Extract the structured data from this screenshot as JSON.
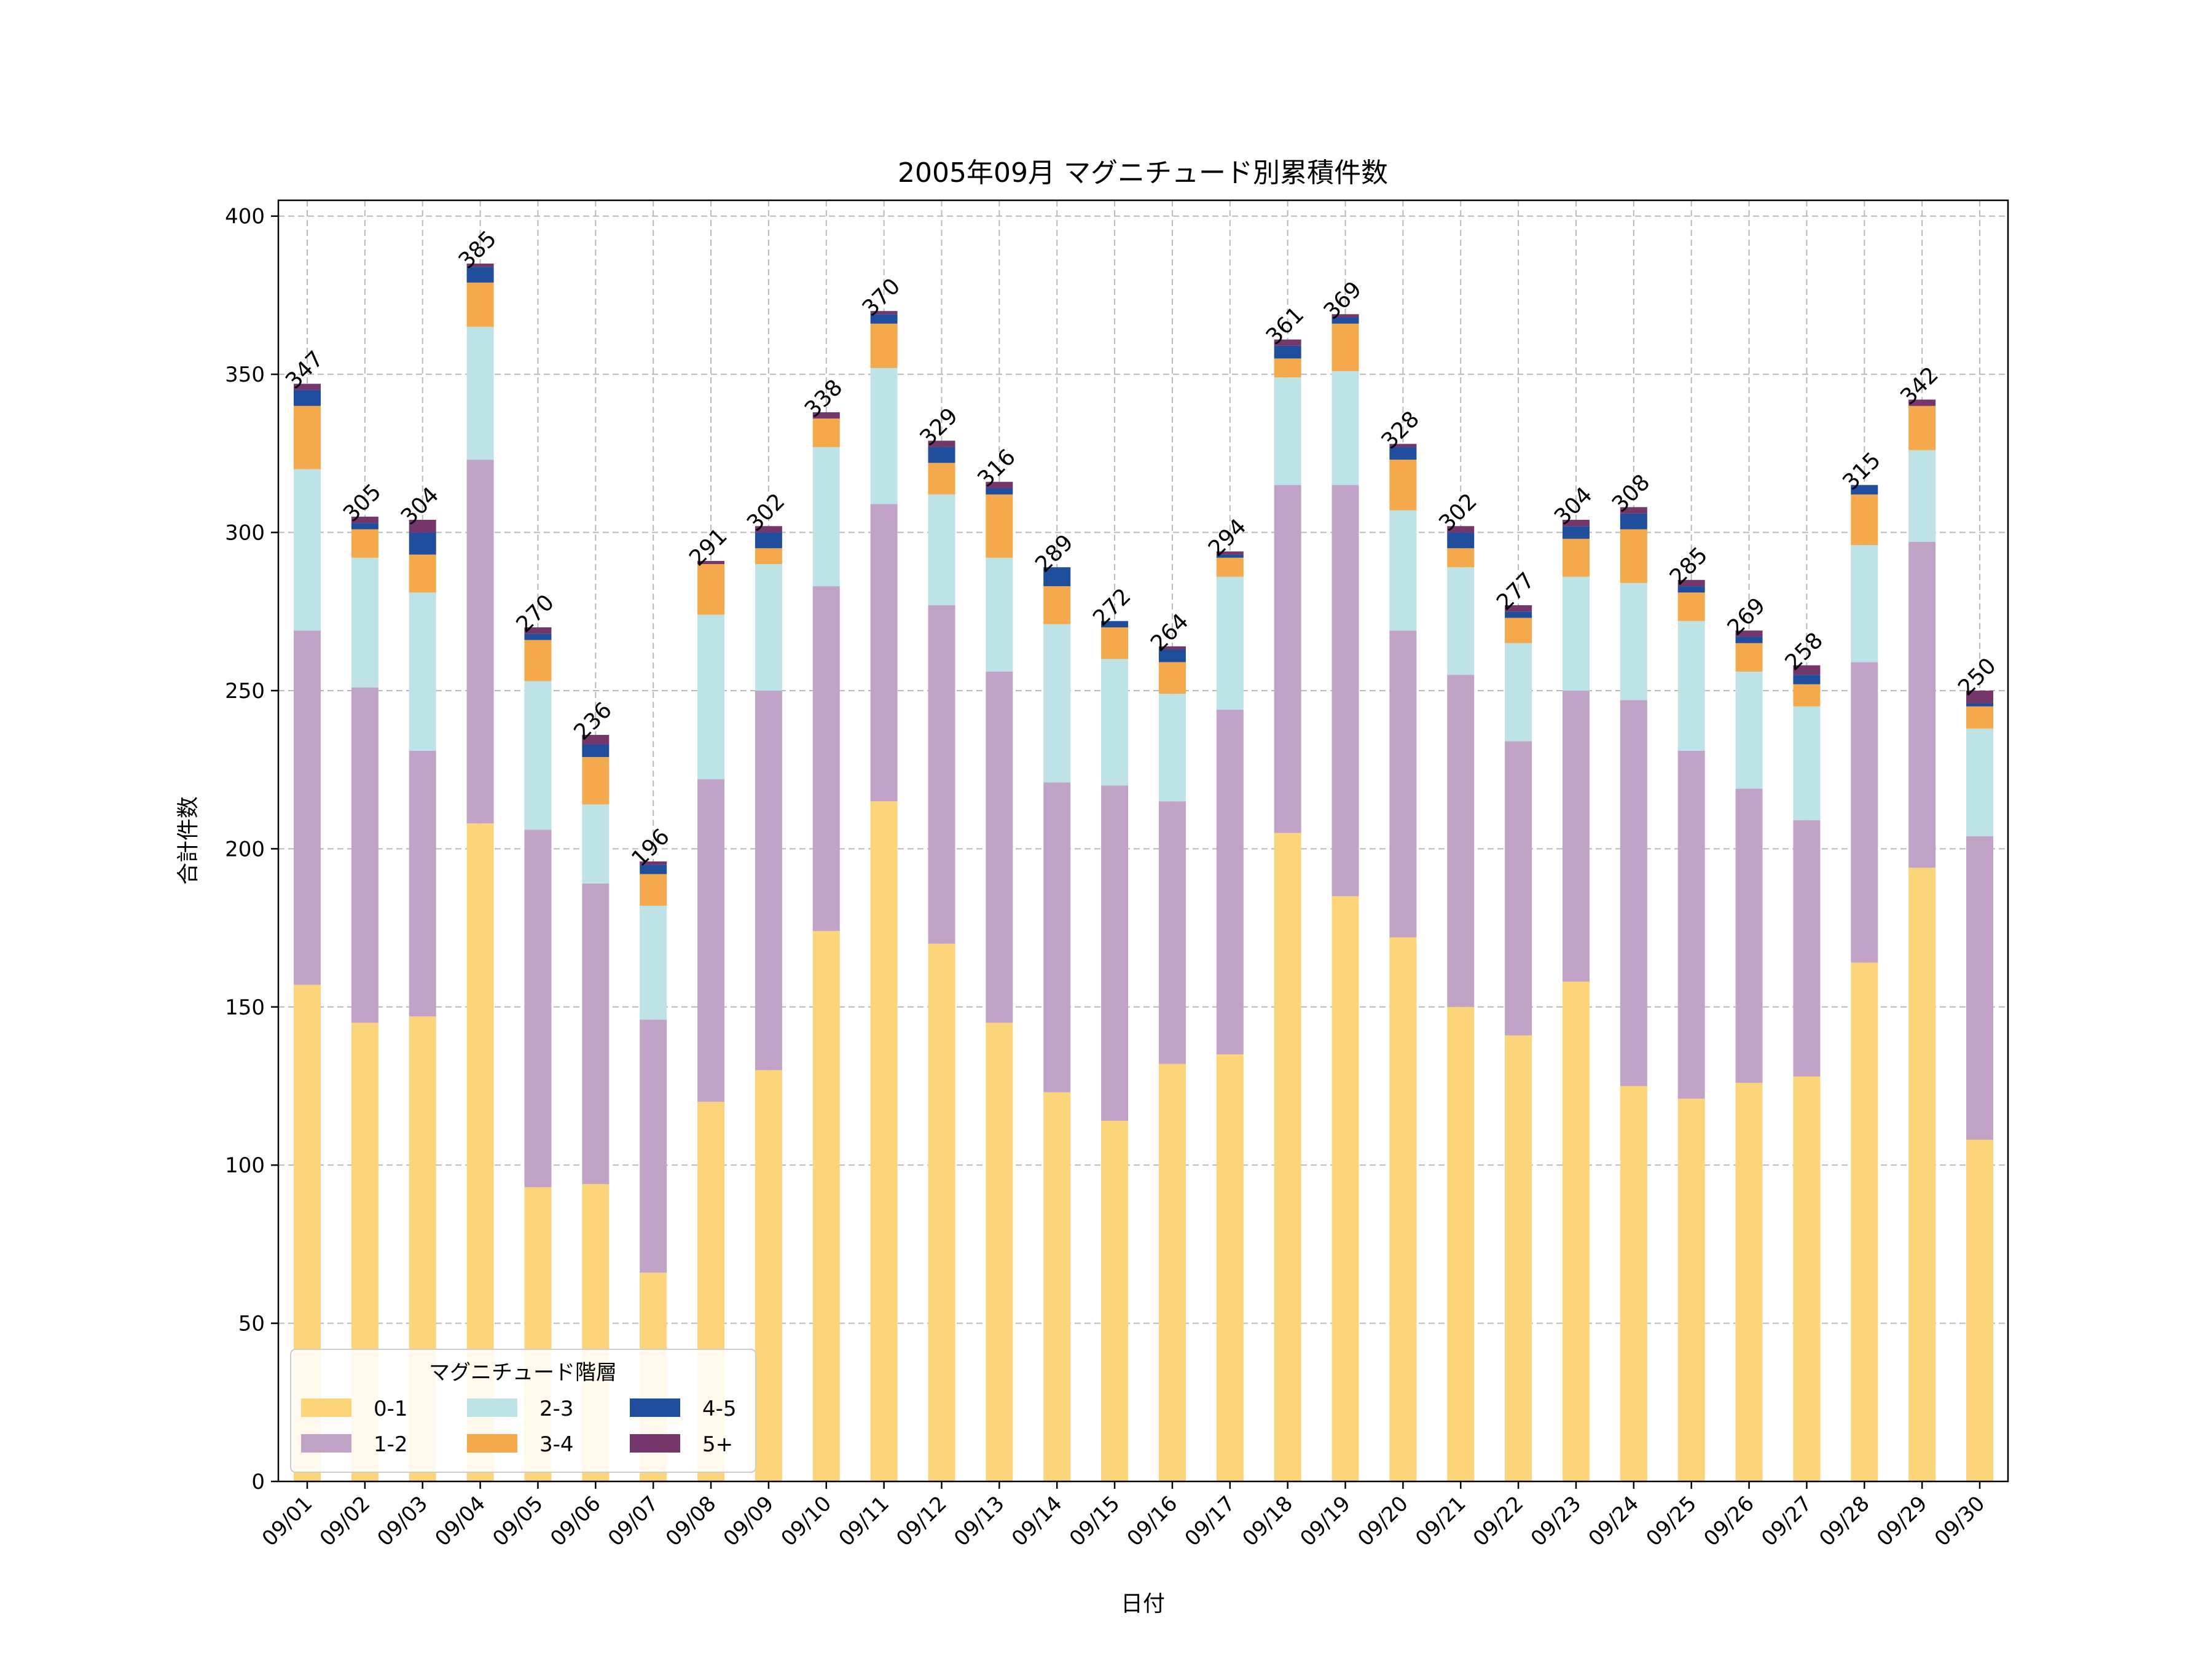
{
  "chart_data": {
    "type": "bar",
    "stacked": true,
    "title": "2005年09月 マグニチュード別累積件数",
    "xlabel": "日付",
    "ylabel": "合計件数",
    "ylim": [
      0,
      405
    ],
    "yticks": [
      0,
      50,
      100,
      150,
      200,
      250,
      300,
      350,
      400
    ],
    "grid": true,
    "legend": {
      "title": "マグニチュード階層",
      "placement": "lower-left",
      "columns": 3
    },
    "categories": [
      "09/01",
      "09/02",
      "09/03",
      "09/04",
      "09/05",
      "09/06",
      "09/07",
      "09/08",
      "09/09",
      "09/10",
      "09/11",
      "09/12",
      "09/13",
      "09/14",
      "09/15",
      "09/16",
      "09/17",
      "09/18",
      "09/19",
      "09/20",
      "09/21",
      "09/22",
      "09/23",
      "09/24",
      "09/25",
      "09/26",
      "09/27",
      "09/28",
      "09/29",
      "09/30"
    ],
    "series": [
      {
        "name": "0-1",
        "color": "#fcd47a",
        "values": [
          157,
          145,
          147,
          208,
          93,
          94,
          66,
          120,
          130,
          174,
          215,
          170,
          145,
          123,
          114,
          132,
          135,
          205,
          185,
          172,
          150,
          141,
          158,
          125,
          121,
          126,
          128,
          164,
          194,
          108
        ]
      },
      {
        "name": "1-2",
        "color": "#c0a3c6",
        "values": [
          112,
          106,
          84,
          115,
          113,
          95,
          80,
          102,
          120,
          109,
          94,
          107,
          111,
          98,
          106,
          83,
          109,
          110,
          130,
          97,
          105,
          93,
          92,
          122,
          110,
          93,
          81,
          95,
          103,
          96
        ]
      },
      {
        "name": "2-3",
        "color": "#bde3e6",
        "values": [
          51,
          41,
          50,
          42,
          47,
          25,
          36,
          52,
          40,
          44,
          43,
          35,
          36,
          50,
          40,
          34,
          42,
          34,
          36,
          38,
          34,
          31,
          36,
          37,
          41,
          37,
          36,
          37,
          29,
          34
        ]
      },
      {
        "name": "3-4",
        "color": "#f4a94c",
        "values": [
          20,
          9,
          12,
          14,
          13,
          15,
          10,
          16,
          5,
          9,
          14,
          10,
          20,
          12,
          10,
          10,
          6,
          6,
          15,
          16,
          6,
          8,
          12,
          17,
          9,
          9,
          7,
          16,
          14,
          7
        ]
      },
      {
        "name": "4-5",
        "color": "#1f4e9c",
        "values": [
          5,
          2,
          7,
          5,
          2,
          4,
          3,
          0,
          5,
          0,
          3,
          5,
          2,
          6,
          2,
          4,
          1,
          4,
          2,
          4,
          5,
          2,
          4,
          5,
          2,
          2,
          3,
          3,
          0,
          1
        ]
      },
      {
        "name": "5+",
        "color": "#74366b",
        "values": [
          2,
          2,
          4,
          1,
          2,
          3,
          1,
          1,
          2,
          2,
          1,
          2,
          2,
          0,
          0,
          1,
          1,
          2,
          1,
          1,
          2,
          2,
          2,
          2,
          2,
          2,
          3,
          0,
          2,
          4
        ]
      }
    ],
    "totals": [
      347,
      305,
      304,
      385,
      270,
      236,
      196,
      291,
      302,
      338,
      370,
      329,
      316,
      289,
      272,
      264,
      294,
      361,
      369,
      328,
      302,
      277,
      304,
      308,
      285,
      269,
      258,
      315,
      342,
      250
    ]
  }
}
